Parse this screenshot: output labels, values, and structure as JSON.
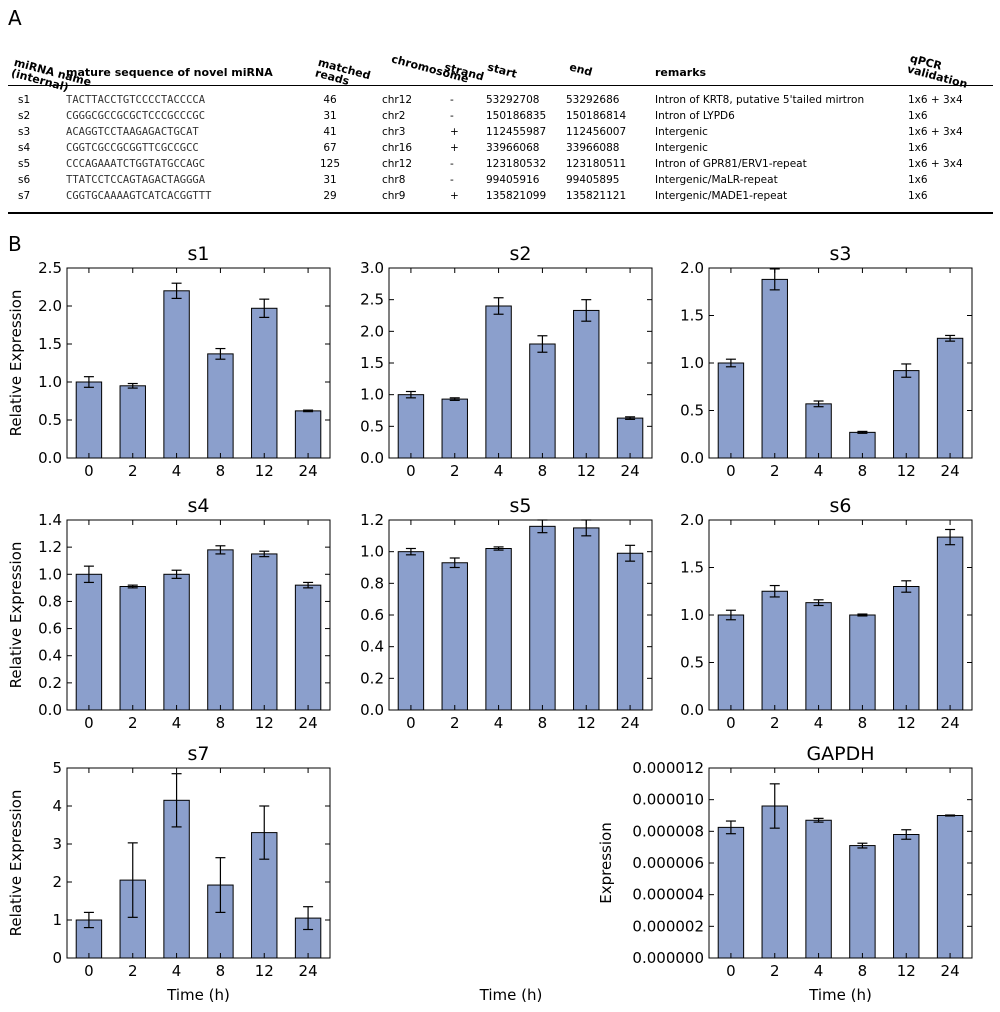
{
  "panel_labels": {
    "a": "A",
    "b": "B"
  },
  "table": {
    "headers": {
      "name": "miRNA name\n(internal)",
      "sequence": "mature sequence of novel miRNA",
      "reads": "matched\nreads",
      "chromosome": "chromosome",
      "strand": "strand",
      "start": "start",
      "end": "end",
      "remarks": "remarks",
      "qpcr": "qPCR\nvalidation"
    },
    "rows": [
      {
        "name": "s1",
        "sequence": "TACTTACCTGTCCCCTACCCCA",
        "reads": "46",
        "chromosome": "chr12",
        "strand": "-",
        "start": "53292708",
        "end": "53292686",
        "remarks": "Intron of KRT8, putative 5'tailed mirtron",
        "qpcr": "1x6 + 3x4"
      },
      {
        "name": "s2",
        "sequence": "CGGGCGCCGCGCTCCCGCCCGC",
        "reads": "31",
        "chromosome": "chr2",
        "strand": "-",
        "start": "150186835",
        "end": "150186814",
        "remarks": "Intron of LYPD6",
        "qpcr": "1x6"
      },
      {
        "name": "s3",
        "sequence": "ACAGGTCCTAAGAGACTGCAT",
        "reads": "41",
        "chromosome": "chr3",
        "strand": "+",
        "start": "112455987",
        "end": "112456007",
        "remarks": "Intergenic",
        "qpcr": "1x6 + 3x4"
      },
      {
        "name": "s4",
        "sequence": "CGGTCGCCGCGGTTCGCCGCC",
        "reads": "67",
        "chromosome": "chr16",
        "strand": "+",
        "start": "33966068",
        "end": "33966088",
        "remarks": "Intergenic",
        "qpcr": "1x6"
      },
      {
        "name": "s5",
        "sequence": "CCCAGAAATCTGGTATGCCAGC",
        "reads": "125",
        "chromosome": "chr12",
        "strand": "-",
        "start": "123180532",
        "end": "123180511",
        "remarks": "Intron of GPR81/ERV1-repeat",
        "qpcr": "1x6 + 3x4"
      },
      {
        "name": "s6",
        "sequence": "TTATCCTCCAGTAGACTAGGGA",
        "reads": "31",
        "chromosome": "chr8",
        "strand": "-",
        "start": "99405916",
        "end": "99405895",
        "remarks": "Intergenic/MaLR-repeat",
        "qpcr": "1x6"
      },
      {
        "name": "s7",
        "sequence": "CGGTGCAAAAGTCATCACGGTTT",
        "reads": "29",
        "chromosome": "chr9",
        "strand": "+",
        "start": "135821099",
        "end": "135821121",
        "remarks": "Intergenic/MADE1-repeat",
        "qpcr": "1x6"
      }
    ]
  },
  "colors": {
    "bar": "#8b9fcc",
    "edge": "#000000"
  },
  "chart_data": [
    {
      "type": "bar",
      "title": "s1",
      "ylabel": "Relative Expression",
      "xlabel": "",
      "categories": [
        "0",
        "2",
        "4",
        "8",
        "12",
        "24"
      ],
      "values": [
        1.0,
        0.95,
        2.2,
        1.37,
        1.97,
        0.62
      ],
      "errors": [
        0.07,
        0.03,
        0.1,
        0.07,
        0.12,
        0.01
      ],
      "ylim": [
        0,
        2.5
      ],
      "yticks": [
        "0.0",
        "0.5",
        "1.0",
        "1.5",
        "2.0",
        "2.5"
      ]
    },
    {
      "type": "bar",
      "title": "s2",
      "ylabel": "",
      "xlabel": "",
      "categories": [
        "0",
        "2",
        "4",
        "8",
        "12",
        "24"
      ],
      "values": [
        1.0,
        0.93,
        2.4,
        1.8,
        2.33,
        0.63
      ],
      "errors": [
        0.05,
        0.02,
        0.13,
        0.13,
        0.17,
        0.02
      ],
      "ylim": [
        0,
        3.0
      ],
      "yticks": [
        "0.0",
        "0.5",
        "1.0",
        "1.5",
        "2.0",
        "2.5",
        "3.0"
      ]
    },
    {
      "type": "bar",
      "title": "s3",
      "ylabel": "",
      "xlabel": "",
      "categories": [
        "0",
        "2",
        "4",
        "8",
        "12",
        "24"
      ],
      "values": [
        1.0,
        1.88,
        0.57,
        0.27,
        0.92,
        1.26
      ],
      "errors": [
        0.04,
        0.11,
        0.03,
        0.01,
        0.07,
        0.03
      ],
      "ylim": [
        0,
        2.0
      ],
      "yticks": [
        "0.0",
        "0.5",
        "1.0",
        "1.5",
        "2.0"
      ]
    },
    {
      "type": "bar",
      "title": "s4",
      "ylabel": "Relative Expression",
      "xlabel": "",
      "categories": [
        "0",
        "2",
        "4",
        "8",
        "12",
        "24"
      ],
      "values": [
        1.0,
        0.91,
        1.0,
        1.18,
        1.15,
        0.92
      ],
      "errors": [
        0.06,
        0.01,
        0.03,
        0.03,
        0.02,
        0.02
      ],
      "ylim": [
        0,
        1.4
      ],
      "yticks": [
        "0.0",
        "0.2",
        "0.4",
        "0.6",
        "0.8",
        "1.0",
        "1.2",
        "1.4"
      ]
    },
    {
      "type": "bar",
      "title": "s5",
      "ylabel": "",
      "xlabel": "",
      "categories": [
        "0",
        "2",
        "4",
        "8",
        "12",
        "24"
      ],
      "values": [
        1.0,
        0.93,
        1.02,
        1.16,
        1.15,
        0.99
      ],
      "errors": [
        0.02,
        0.03,
        0.01,
        0.04,
        0.05,
        0.05
      ],
      "ylim": [
        0,
        1.2
      ],
      "yticks": [
        "0.0",
        "0.2",
        "0.4",
        "0.6",
        "0.8",
        "1.0",
        "1.2"
      ]
    },
    {
      "type": "bar",
      "title": "s6",
      "ylabel": "",
      "xlabel": "",
      "categories": [
        "0",
        "2",
        "4",
        "8",
        "12",
        "24"
      ],
      "values": [
        1.0,
        1.25,
        1.13,
        1.0,
        1.3,
        1.82
      ],
      "errors": [
        0.05,
        0.06,
        0.03,
        0.01,
        0.06,
        0.08
      ],
      "ylim": [
        0,
        2.0
      ],
      "yticks": [
        "0.0",
        "0.5",
        "1.0",
        "1.5",
        "2.0"
      ]
    },
    {
      "type": "bar",
      "title": "s7",
      "ylabel": "Relative Expression",
      "xlabel": "Time (h)",
      "categories": [
        "0",
        "2",
        "4",
        "8",
        "12",
        "24"
      ],
      "values": [
        1.0,
        2.05,
        4.15,
        1.92,
        3.3,
        1.05
      ],
      "errors": [
        0.2,
        0.98,
        0.7,
        0.72,
        0.7,
        0.3
      ],
      "ylim": [
        0,
        5
      ],
      "yticks": [
        "0",
        "1",
        "2",
        "3",
        "4",
        "5"
      ]
    },
    {
      "type": "bar",
      "title": "GAPDH",
      "ylabel": "Expression",
      "xlabel": "Time (h)",
      "categories": [
        "0",
        "2",
        "4",
        "8",
        "12",
        "24"
      ],
      "values": [
        8.25e-06,
        9.6e-06,
        8.7e-06,
        7.1e-06,
        7.8e-06,
        9e-06
      ],
      "errors": [
        4e-07,
        1.4e-06,
        1.2e-07,
        1.5e-07,
        3e-07,
        3e-08
      ],
      "ylim": [
        0,
        1.2e-05
      ],
      "yticks": [
        "0.000000",
        "0.000002",
        "0.000004",
        "0.000006",
        "0.000008",
        "0.000010",
        "0.000012"
      ]
    }
  ],
  "middle_xlabel": "Time (h)"
}
